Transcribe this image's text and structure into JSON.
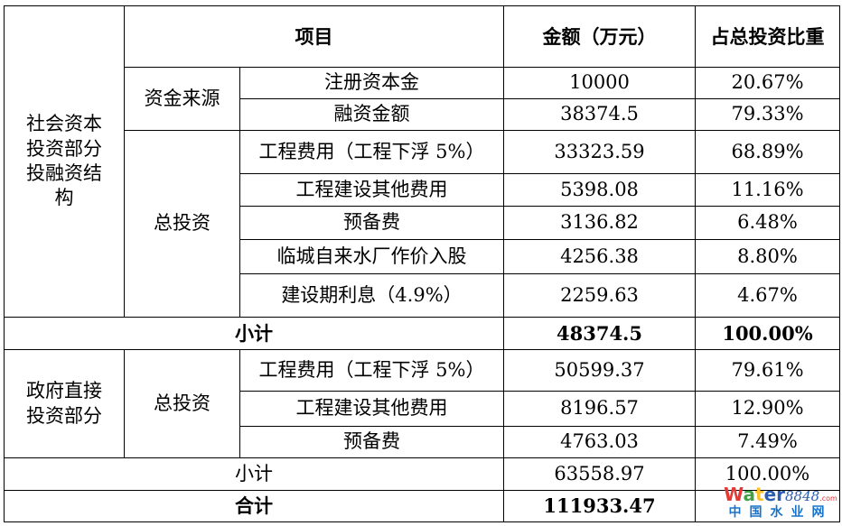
{
  "header": {
    "item": "项目",
    "amount": "金额（万元）",
    "ratio": "占总投资比重"
  },
  "social": {
    "label": "社会资本投资部分投融资结构",
    "sources_label": "资金来源",
    "invest_label": "总投资",
    "sources": [
      {
        "name": "注册资本金",
        "amount": "10000",
        "ratio": "20.67%"
      },
      {
        "name": "融资金额",
        "amount": "38374.5",
        "ratio": "79.33%"
      }
    ],
    "invest": [
      {
        "name": "工程费用（工程下浮 5%）",
        "amount": "33323.59",
        "ratio": "68.89%"
      },
      {
        "name": "工程建设其他费用",
        "amount": "5398.08",
        "ratio": "11.16%"
      },
      {
        "name": "预备费",
        "amount": "3136.82",
        "ratio": "6.48%"
      },
      {
        "name": "临城自来水厂作价入股",
        "amount": "4256.38",
        "ratio": "8.80%"
      },
      {
        "name": "建设期利息（4.9%）",
        "amount": "2259.63",
        "ratio": "4.67%"
      }
    ],
    "subtotal": {
      "label": "小计",
      "amount": "48374.5",
      "ratio": "100.00%"
    }
  },
  "gov": {
    "label": "政府直接投资部分",
    "invest_label": "总投资",
    "invest": [
      {
        "name": "工程费用（工程下浮 5%）",
        "amount": "50599.37",
        "ratio": "79.61%"
      },
      {
        "name": "工程建设其他费用",
        "amount": "8196.57",
        "ratio": "12.90%"
      },
      {
        "name": "预备费",
        "amount": "4763.03",
        "ratio": "7.49%"
      }
    ],
    "subtotal": {
      "label": "小计",
      "amount": "63558.97",
      "ratio": "100.00%"
    }
  },
  "total": {
    "label": "合计",
    "amount": "111933.47"
  },
  "watermark": {
    "logo": "Water",
    "num": "8848",
    "com": ".com",
    "cn": "中国水业网",
    "colors": [
      "#e53935",
      "#43a047",
      "#fbc02d",
      "#2a5db0"
    ]
  }
}
